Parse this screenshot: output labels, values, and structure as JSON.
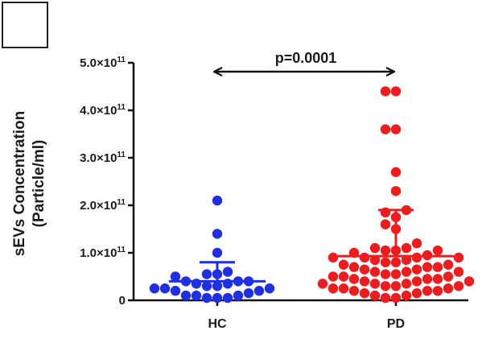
{
  "chart_data": {
    "type": "scatter",
    "ylabel_line1": "sEVs Concentration",
    "ylabel_line2": "(Particle/ml)",
    "ylim": [
      0,
      500000000000.0
    ],
    "yticks": [
      {
        "value": 0,
        "mantissa": "0",
        "exponent": ""
      },
      {
        "value": 100000000000.0,
        "mantissa": "1.0×10",
        "exponent": "11"
      },
      {
        "value": 200000000000.0,
        "mantissa": "2.0×10",
        "exponent": "11"
      },
      {
        "value": 300000000000.0,
        "mantissa": "3.0×10",
        "exponent": "11"
      },
      {
        "value": 400000000000.0,
        "mantissa": "4.0×10",
        "exponent": "11"
      },
      {
        "value": 500000000000.0,
        "mantissa": "5.0×10",
        "exponent": "11"
      }
    ],
    "categories": [
      "HC",
      "PD"
    ],
    "annotation": "p=0.0001",
    "series": [
      {
        "name": "HC",
        "color": "#1f2fe6",
        "mean": 40000000000.0,
        "sd_upper": 80000000000.0,
        "points": [
          210000000000.0,
          140000000000.0,
          100000000000.0,
          60000000000.0,
          55000000000.0,
          55000000000.0,
          50000000000.0,
          40000000000.0,
          40000000000.0,
          40000000000.0,
          35000000000.0,
          35000000000.0,
          30000000000.0,
          30000000000.0,
          25000000000.0,
          25000000000.0,
          25000000000.0,
          20000000000.0,
          20000000000.0,
          15000000000.0,
          10000000000.0,
          10000000000.0,
          10000000000.0,
          5000000000.0,
          5000000000.0,
          5000000000.0
        ]
      },
      {
        "name": "PD",
        "color": "#ee1c1c",
        "mean": 93000000000.0,
        "sd_upper": 190000000000.0,
        "points": [
          440000000000.0,
          440000000000.0,
          360000000000.0,
          360000000000.0,
          270000000000.0,
          230000000000.0,
          190000000000.0,
          185000000000.0,
          175000000000.0,
          160000000000.0,
          150000000000.0,
          120000000000.0,
          110000000000.0,
          110000000000.0,
          105000000000.0,
          105000000000.0,
          105000000000.0,
          100000000000.0,
          95000000000.0,
          90000000000.0,
          90000000000.0,
          90000000000.0,
          90000000000.0,
          85000000000.0,
          85000000000.0,
          80000000000.0,
          80000000000.0,
          75000000000.0,
          75000000000.0,
          70000000000.0,
          70000000000.0,
          70000000000.0,
          65000000000.0,
          65000000000.0,
          60000000000.0,
          60000000000.0,
          60000000000.0,
          55000000000.0,
          55000000000.0,
          50000000000.0,
          50000000000.0,
          50000000000.0,
          45000000000.0,
          45000000000.0,
          45000000000.0,
          40000000000.0,
          40000000000.0,
          40000000000.0,
          35000000000.0,
          35000000000.0,
          35000000000.0,
          30000000000.0,
          30000000000.0,
          30000000000.0,
          25000000000.0,
          25000000000.0,
          25000000000.0,
          20000000000.0,
          20000000000.0,
          20000000000.0,
          15000000000.0,
          15000000000.0,
          10000000000.0,
          10000000000.0,
          5000000000.0,
          5000000000.0
        ]
      }
    ]
  }
}
